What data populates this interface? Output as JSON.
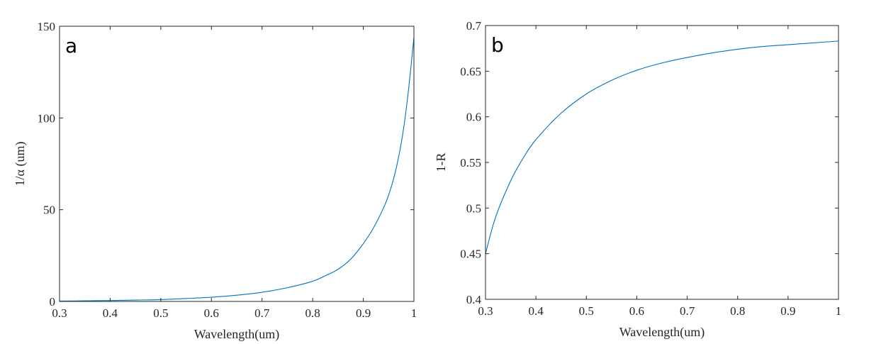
{
  "chart_data": [
    {
      "type": "line",
      "panel_label": "a",
      "xlabel": "Wavelength(um)",
      "ylabel": "1/α (um)",
      "xlim": [
        0.3,
        1.0
      ],
      "ylim": [
        0,
        150
      ],
      "xticks": [
        "0.3",
        "0.4",
        "0.5",
        "0.6",
        "0.7",
        "0.8",
        "0.9",
        "1"
      ],
      "yticks": [
        "0",
        "50",
        "100",
        "150"
      ],
      "xtick_values": [
        0.3,
        0.4,
        0.5,
        0.6,
        0.7,
        0.8,
        0.9,
        1.0
      ],
      "ytick_values": [
        0,
        50,
        100,
        150
      ],
      "grid": false,
      "color": "#0072BD",
      "series": [
        {
          "name": "1/alpha",
          "x": [
            0.3,
            0.35,
            0.4,
            0.45,
            0.5,
            0.55,
            0.6,
            0.65,
            0.7,
            0.75,
            0.8,
            0.825,
            0.85,
            0.875,
            0.9,
            0.92,
            0.94,
            0.95,
            0.96,
            0.97,
            0.98,
            0.99,
            1.0
          ],
          "y": [
            0.2,
            0.35,
            0.5,
            0.75,
            1.0,
            1.6,
            2.3,
            3.4,
            5.0,
            7.5,
            11,
            14,
            17.5,
            23,
            31.5,
            40,
            51,
            58,
            67,
            79,
            95,
            117,
            144
          ]
        }
      ]
    },
    {
      "type": "line",
      "panel_label": "b",
      "xlabel": "Wavelength(um)",
      "ylabel": "1-R",
      "xlim": [
        0.3,
        1.0
      ],
      "ylim": [
        0.4,
        0.7
      ],
      "xticks": [
        "0.3",
        "0.4",
        "0.5",
        "0.6",
        "0.7",
        "0.8",
        "0.9",
        "1"
      ],
      "yticks": [
        "0.4",
        "0.45",
        "0.5",
        "0.55",
        "0.6",
        "0.65",
        "0.7"
      ],
      "xtick_values": [
        0.3,
        0.4,
        0.5,
        0.6,
        0.7,
        0.8,
        0.9,
        1.0
      ],
      "ytick_values": [
        0.4,
        0.45,
        0.5,
        0.55,
        0.6,
        0.65,
        0.7
      ],
      "grid": false,
      "color": "#0072BD",
      "series": [
        {
          "name": "1-R",
          "x": [
            0.3,
            0.32,
            0.35,
            0.375,
            0.4,
            0.45,
            0.5,
            0.55,
            0.6,
            0.65,
            0.7,
            0.75,
            0.8,
            0.85,
            0.9,
            0.95,
            1.0
          ],
          "y": [
            0.45,
            0.49,
            0.53,
            0.555,
            0.575,
            0.604,
            0.625,
            0.64,
            0.651,
            0.659,
            0.665,
            0.67,
            0.674,
            0.677,
            0.679,
            0.681,
            0.683
          ]
        }
      ]
    }
  ]
}
